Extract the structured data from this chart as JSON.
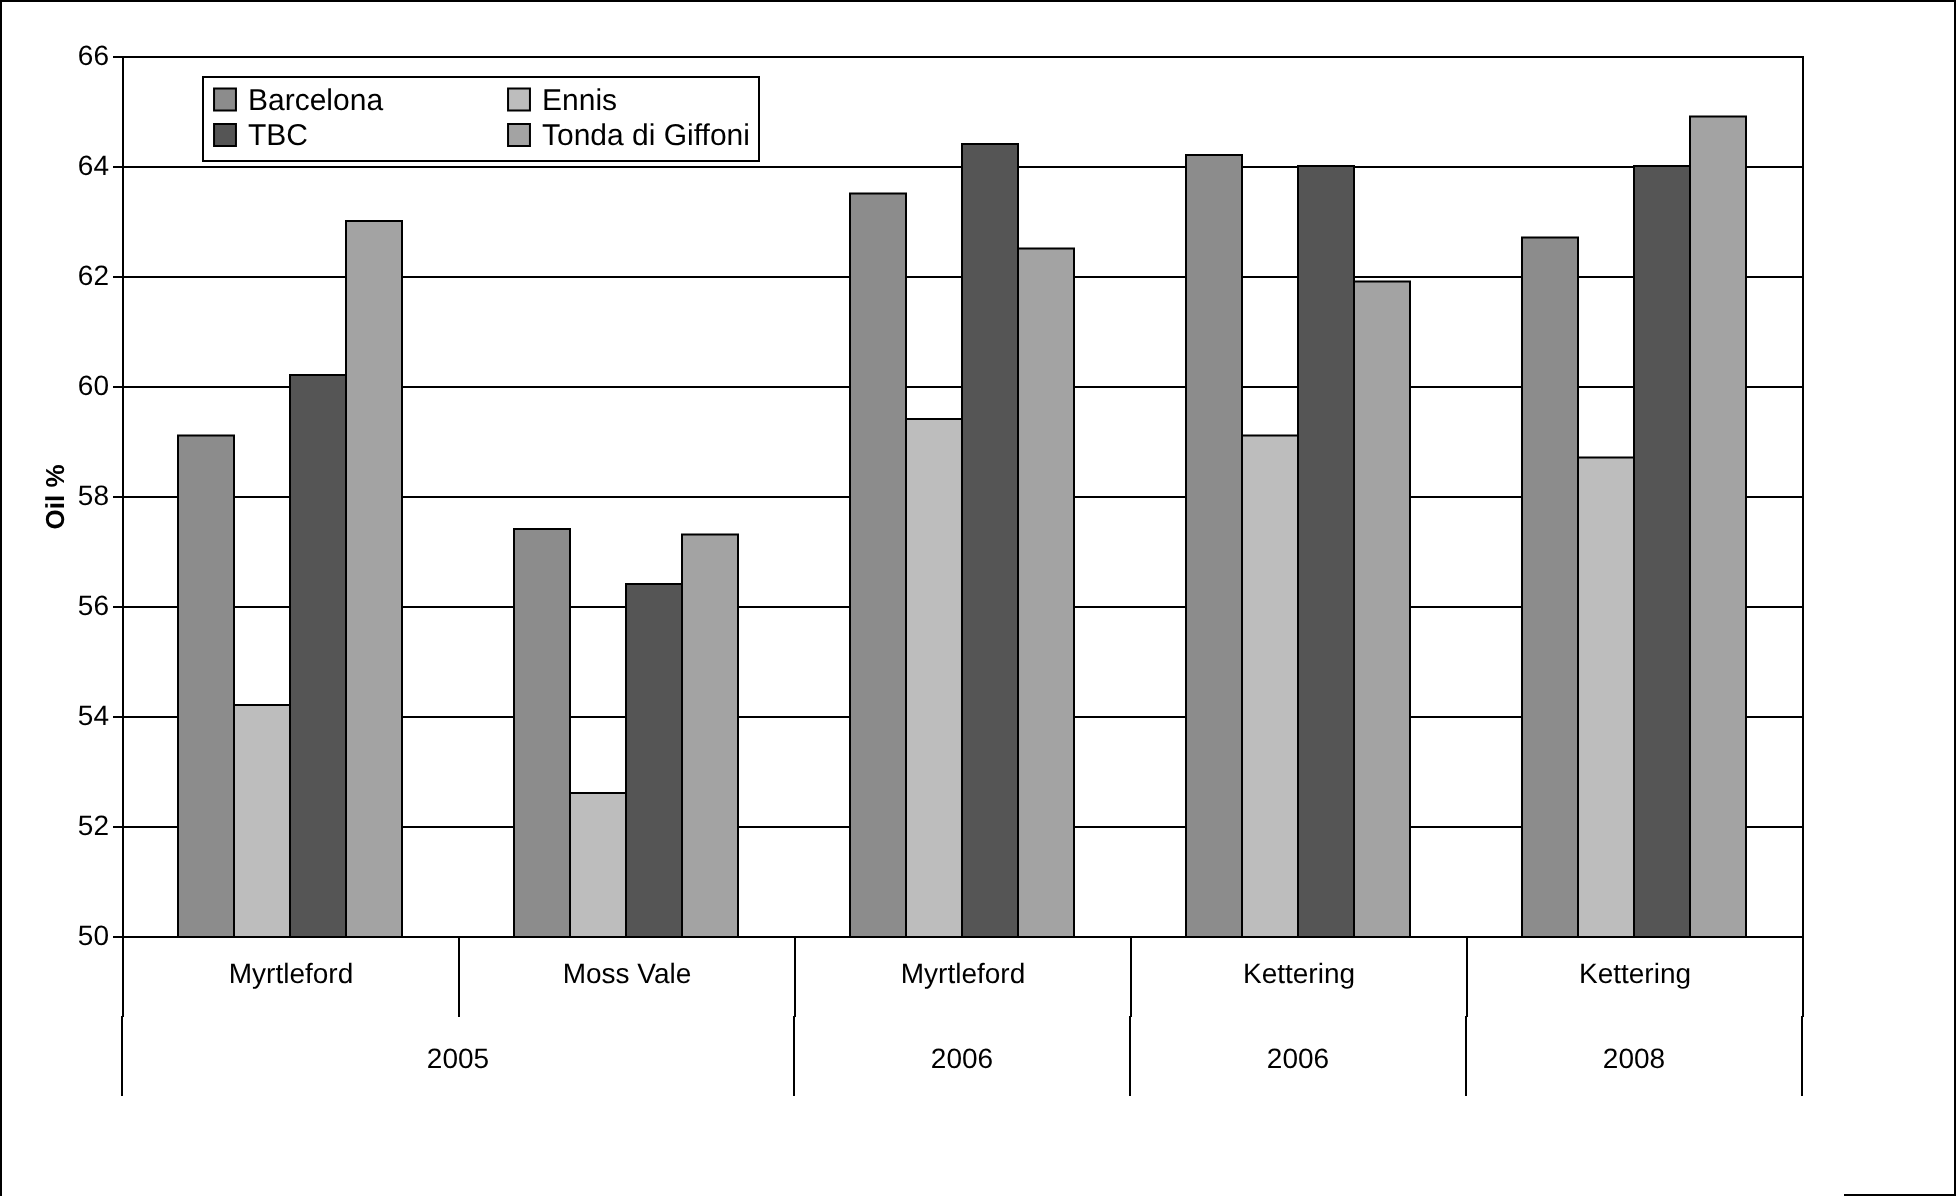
{
  "chart_data": {
    "type": "bar",
    "ylabel": "Oil %",
    "categories": [
      "Myrtleford",
      "Moss Vale",
      "Myrtleford",
      "Kettering",
      "Kettering"
    ],
    "series": [
      {
        "name": "Barcelona",
        "color": "#8c8c8c",
        "values": [
          59.1,
          57.4,
          63.5,
          64.2,
          62.7
        ]
      },
      {
        "name": "Ennis",
        "color": "#bdbdbd",
        "values": [
          54.2,
          52.6,
          59.4,
          59.1,
          58.7
        ]
      },
      {
        "name": "TBC",
        "color": "#555555",
        "values": [
          60.2,
          56.4,
          64.4,
          64.0,
          64.0
        ]
      },
      {
        "name": "Tonda di Giffoni",
        "color": "#a3a3a3",
        "values": [
          63.0,
          57.3,
          62.5,
          61.9,
          64.9
        ]
      }
    ],
    "ylim": [
      50,
      66
    ],
    "yticks": [
      50,
      52,
      54,
      56,
      58,
      60,
      62,
      64,
      66
    ],
    "grid": "y",
    "legend": "top left",
    "annotations": [
      "2005",
      "2006",
      "2006",
      "2008"
    ]
  }
}
